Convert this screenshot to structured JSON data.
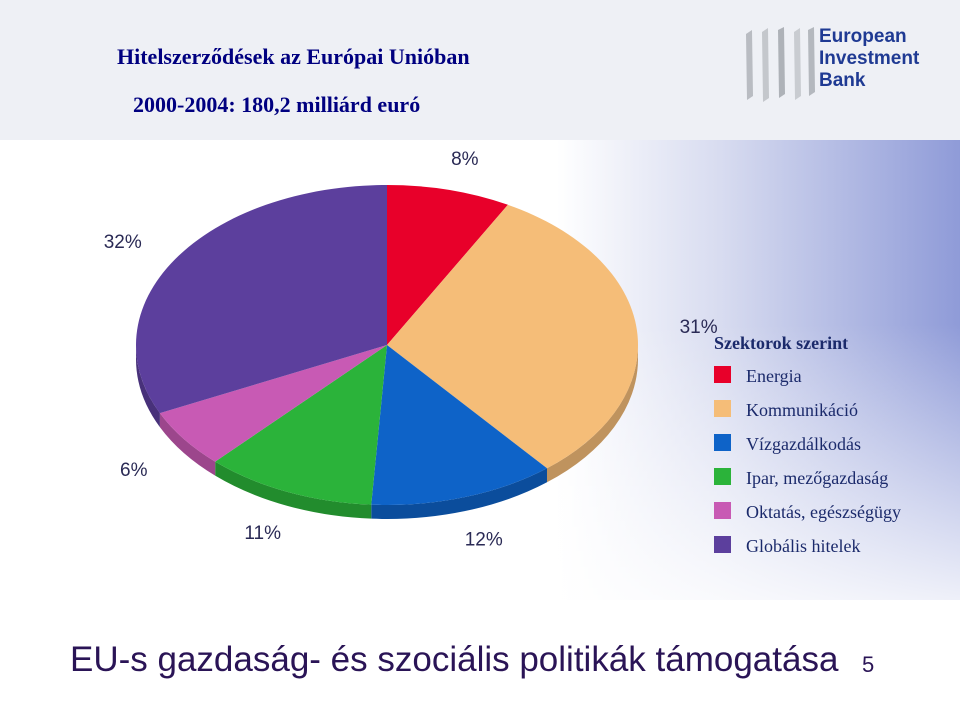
{
  "header": {
    "title": "Hitelszerződések az Európai Unióban",
    "subtitle": "2000-2004: 180,2 milliárd euró"
  },
  "logo": {
    "line1": "European",
    "line2": "Investment",
    "line3": "Bank"
  },
  "chart_data": {
    "type": "pie",
    "legend_title": "Szektorok szerint",
    "legend_position": "right",
    "slices": [
      {
        "name": "Energia",
        "value": 8,
        "label": "8%",
        "color": "#e8002a"
      },
      {
        "name": "Kommunikáció",
        "value": 31,
        "label": "31%",
        "color": "#f5bd78"
      },
      {
        "name": "Vízgazdálkodás",
        "value": 12,
        "label": "12%",
        "color": "#0e63c8"
      },
      {
        "name": "Ipar, mezőgazdaság",
        "value": 11,
        "label": "11%",
        "color": "#2bb33a"
      },
      {
        "name": "Oktatás, egészségügy",
        "value": 6,
        "label": "6%",
        "color": "#c85ab4"
      },
      {
        "name": "Globális hitelek",
        "value": 32,
        "label": "32%",
        "color": "#5c3f9d"
      }
    ]
  },
  "footer": {
    "text": "EU-s gazdaság- és szociális politikák támogatása",
    "page": "5"
  }
}
